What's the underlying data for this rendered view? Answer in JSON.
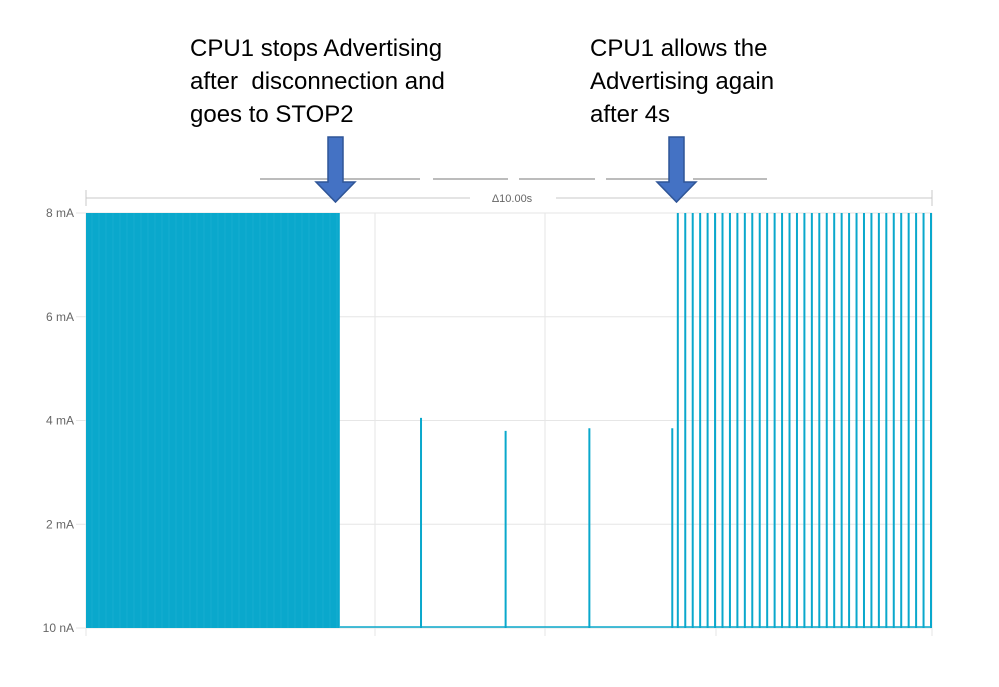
{
  "annotations": {
    "left": [
      "CPU1 stops Advertising",
      "after  disconnection and",
      "goes to STOP2"
    ],
    "right": [
      "CPU1 allows the",
      "Advertising again",
      "after 4s"
    ]
  },
  "colors": {
    "signal": "#0aa8cc",
    "grid": "#e6e6e6",
    "arrow_fill": "#4472c4",
    "arrow_stroke": "#2f5597",
    "axis_text": "#666666"
  },
  "icons": {
    "arrow": "arrow-down-icon"
  },
  "chart_data": {
    "type": "line",
    "title": "",
    "xlabel": "",
    "ylabel": "",
    "y_tick_labels": [
      "8 mA",
      "6 mA",
      "4 mA",
      "2 mA",
      "10 nA"
    ],
    "y_tick_values": [
      8,
      6,
      4,
      2,
      0
    ],
    "ylim": [
      0,
      8
    ],
    "grid": true,
    "window_label": "Δ10.00s",
    "x_range_s": [
      0,
      10
    ],
    "dense_advertising_end_s": 3.0,
    "stop2_spikes": [
      {
        "t": 3.96,
        "mA": 4.05
      },
      {
        "t": 4.96,
        "mA": 3.8
      },
      {
        "t": 5.95,
        "mA": 3.85
      },
      {
        "t": 6.93,
        "mA": 3.85
      }
    ],
    "advertising_resume_s": 6.96,
    "advertising_pulse_mA": 8,
    "advertising_pulse_count": 35
  }
}
